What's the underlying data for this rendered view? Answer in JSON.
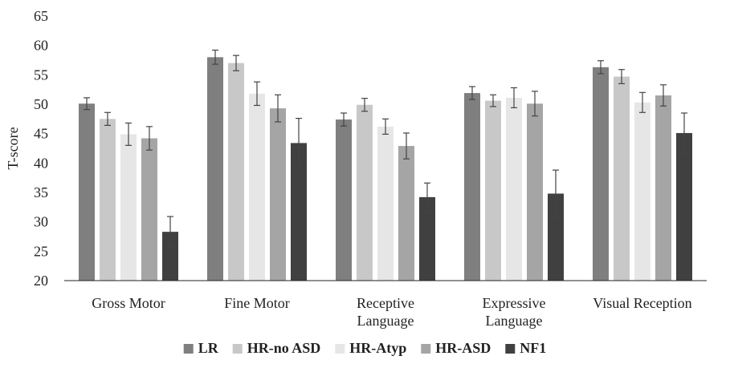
{
  "chart_data": {
    "type": "bar",
    "title": "",
    "xlabel": "",
    "ylabel": "T-score",
    "ylim": [
      20,
      65
    ],
    "yticks": [
      20,
      25,
      30,
      35,
      40,
      45,
      50,
      55,
      60,
      65
    ],
    "grid": false,
    "legend_position": "bottom",
    "categories": [
      [
        "Gross Motor"
      ],
      [
        "Fine Motor"
      ],
      [
        "Receptive",
        "Language"
      ],
      [
        "Expressive",
        "Language"
      ],
      [
        "Visual Reception"
      ]
    ],
    "series": [
      {
        "name": "LR",
        "color": "#7f7f7f",
        "values": [
          50.1,
          58.0,
          47.4,
          51.9,
          56.3
        ],
        "errors": [
          1.0,
          1.2,
          1.1,
          1.1,
          1.1
        ]
      },
      {
        "name": "HR-no ASD",
        "color": "#c8c8c8",
        "values": [
          47.5,
          57.0,
          49.9,
          50.6,
          54.7
        ],
        "errors": [
          1.1,
          1.3,
          1.1,
          1.0,
          1.2
        ]
      },
      {
        "name": "HR-Atyp",
        "color": "#e6e6e6",
        "values": [
          44.9,
          51.8,
          46.2,
          51.1,
          50.3
        ],
        "errors": [
          1.9,
          2.0,
          1.3,
          1.7,
          1.7
        ]
      },
      {
        "name": "HR-ASD",
        "color": "#a5a5a5",
        "values": [
          44.2,
          49.3,
          42.9,
          50.1,
          51.5
        ],
        "errors": [
          2.0,
          2.3,
          2.2,
          2.1,
          1.8
        ]
      },
      {
        "name": "NF1",
        "color": "#404040",
        "values": [
          28.3,
          43.4,
          34.2,
          34.8,
          45.1
        ],
        "errors": [
          2.6,
          4.2,
          2.4,
          4.0,
          3.4
        ]
      }
    ]
  }
}
